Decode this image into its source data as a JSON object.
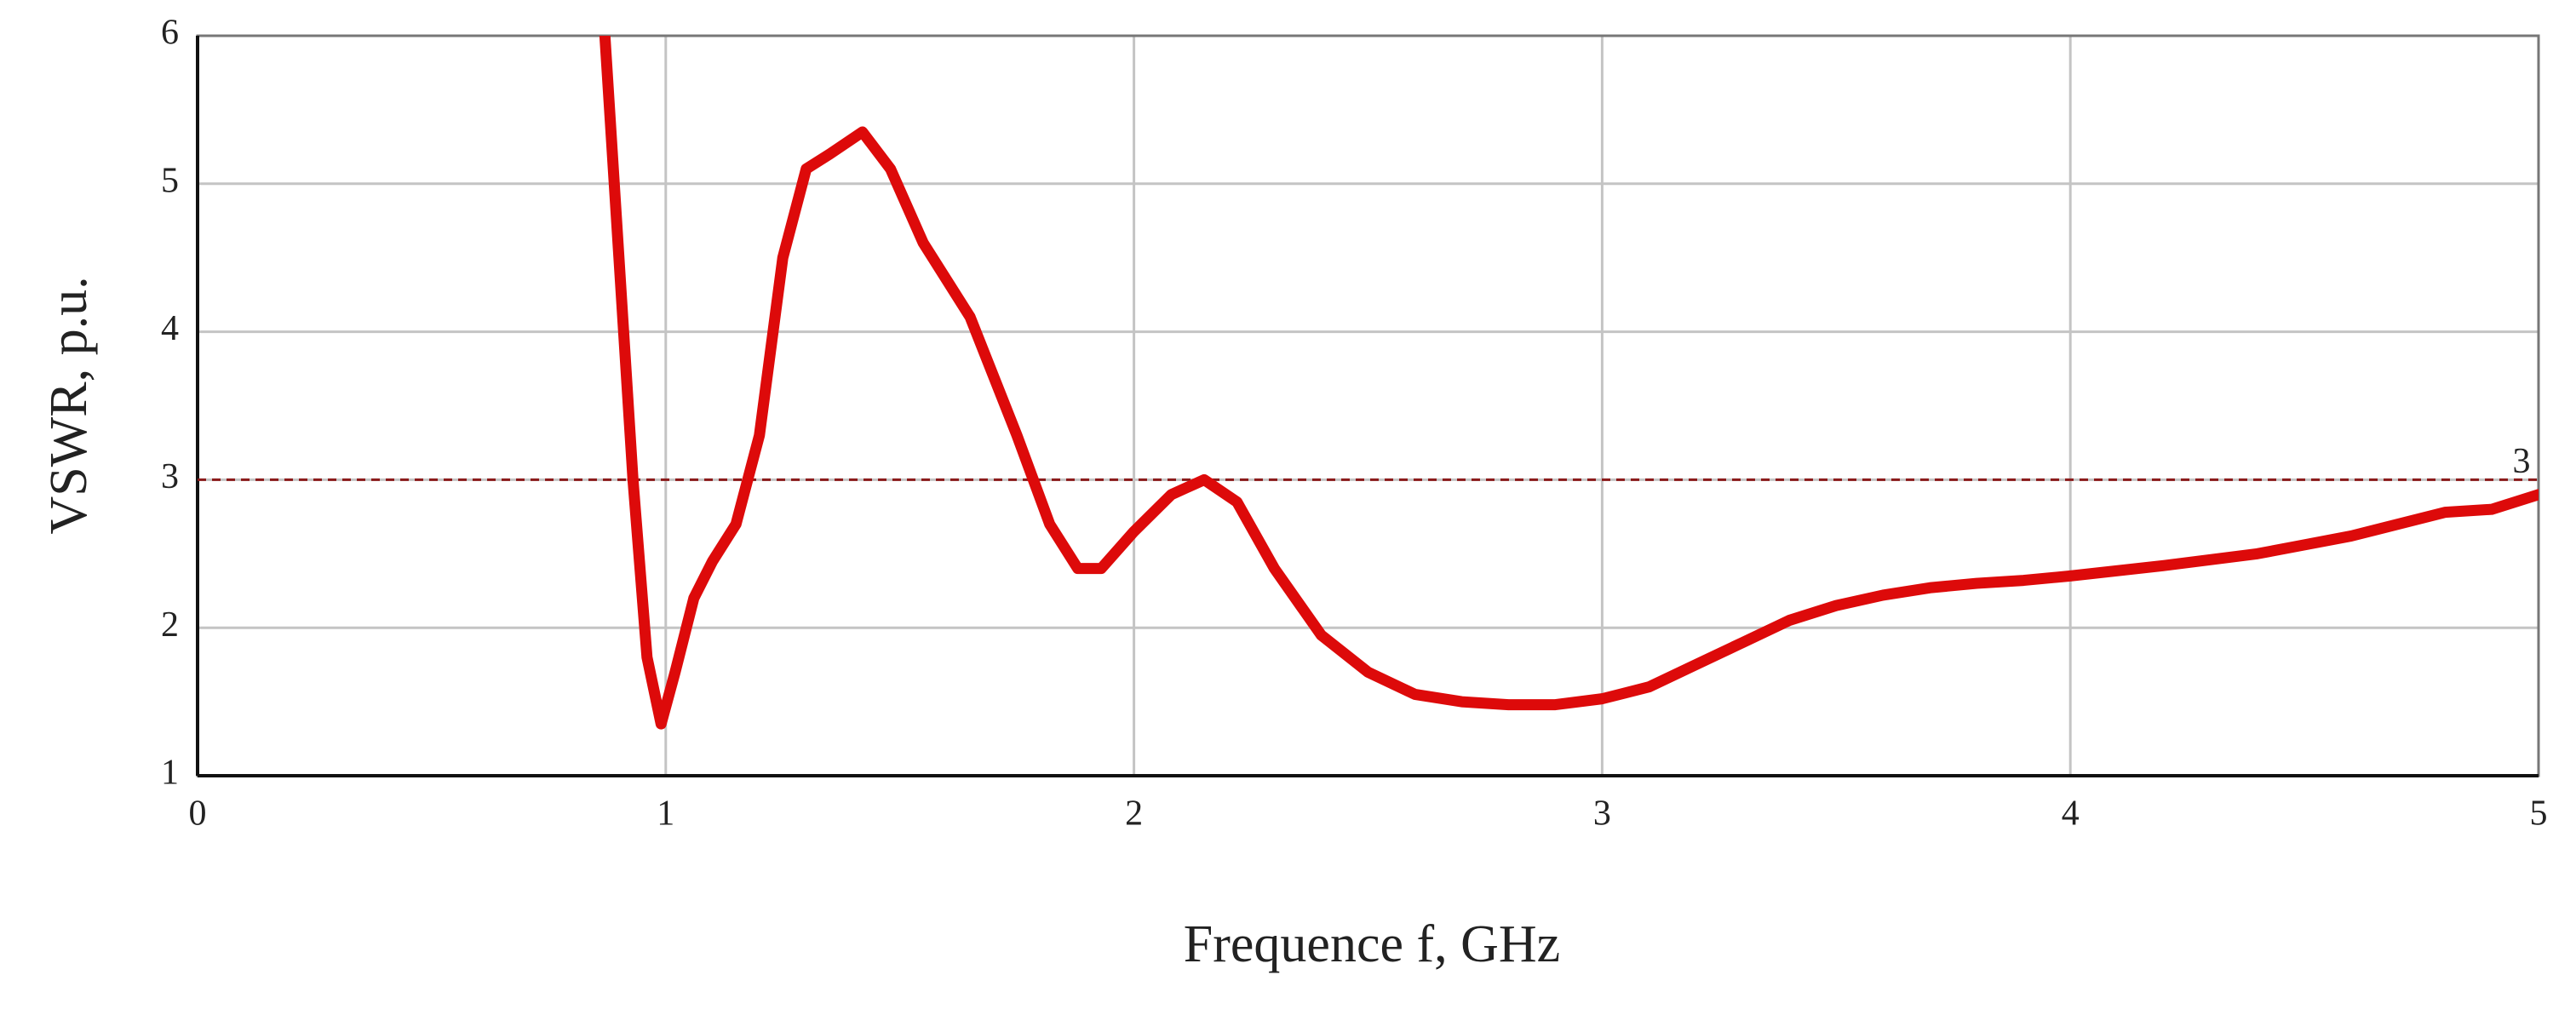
{
  "chart_data": {
    "type": "line",
    "xlabel": "Frequence f, GHz",
    "ylabel": "VSWR, p.u.",
    "x": [
      0.87,
      0.9,
      0.93,
      0.96,
      0.99,
      1.02,
      1.06,
      1.1,
      1.15,
      1.2,
      1.25,
      1.3,
      1.35,
      1.42,
      1.48,
      1.55,
      1.65,
      1.75,
      1.82,
      1.88,
      1.93,
      2.0,
      2.08,
      2.15,
      2.22,
      2.3,
      2.4,
      2.5,
      2.6,
      2.7,
      2.8,
      2.9,
      3.0,
      3.1,
      3.2,
      3.3,
      3.4,
      3.5,
      3.6,
      3.7,
      3.8,
      3.9,
      4.0,
      4.2,
      4.4,
      4.6,
      4.8,
      4.9,
      5.0
    ],
    "series": [
      {
        "color": "#dd0a0a",
        "values": [
          6.0,
          4.5,
          3.0,
          1.8,
          1.35,
          1.7,
          2.2,
          2.45,
          2.7,
          3.3,
          4.5,
          5.1,
          5.2,
          5.35,
          5.1,
          4.6,
          4.1,
          3.3,
          2.7,
          2.4,
          2.4,
          2.65,
          2.9,
          3.0,
          2.85,
          2.4,
          1.95,
          1.7,
          1.55,
          1.5,
          1.48,
          1.48,
          1.52,
          1.6,
          1.75,
          1.9,
          2.05,
          2.15,
          2.22,
          2.27,
          2.3,
          2.32,
          2.35,
          2.42,
          2.5,
          2.62,
          2.78,
          2.8,
          2.9
        ]
      }
    ],
    "hline": 3,
    "hline_color": "#8b1a1a",
    "xlim": [
      0,
      5
    ],
    "xticks": [
      0,
      1,
      2,
      3,
      4,
      5
    ],
    "ylim": [
      1,
      6
    ],
    "yticks": [
      1,
      2,
      3,
      4,
      5,
      6
    ],
    "grid": true
  }
}
